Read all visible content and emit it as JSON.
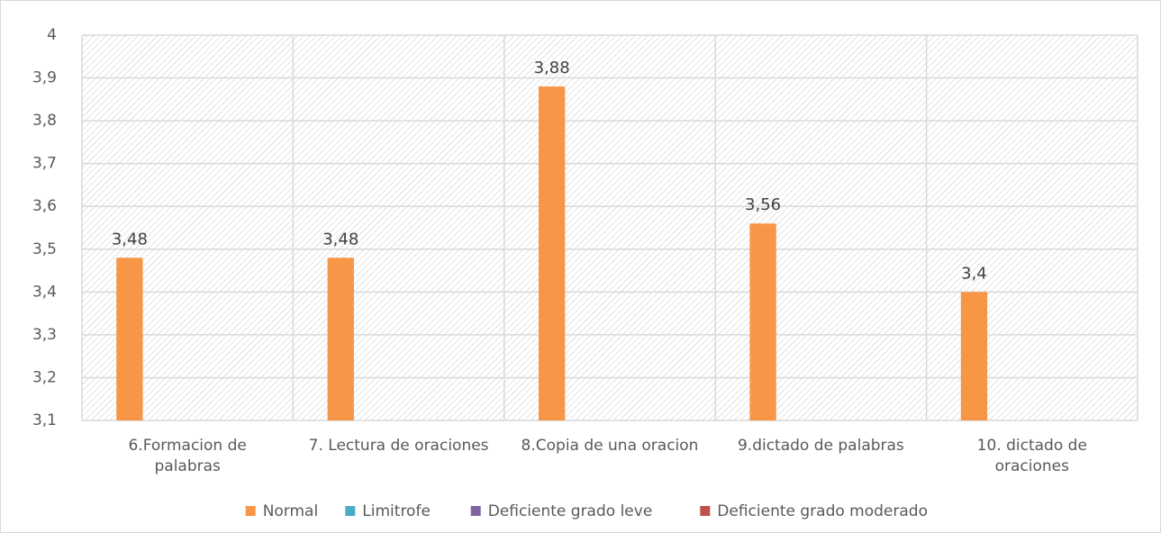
{
  "chart_data": {
    "type": "bar",
    "categories": [
      "6.Formacion de palabras",
      "7. Lectura de oraciones",
      "8.Copia de una oracion",
      "9.dictado de palabras",
      "10. dictado de oraciones"
    ],
    "series": [
      {
        "name": "Normal",
        "color": "#f79646",
        "values": [
          3.48,
          3.48,
          3.88,
          3.56,
          3.4
        ],
        "value_labels": [
          "3,48",
          "3,48",
          "3,88",
          "3,56",
          "3,4"
        ]
      },
      {
        "name": "Limitrofe",
        "color": "#4bacc6",
        "values": [
          null,
          null,
          null,
          null,
          null
        ]
      },
      {
        "name": "Deficiente grado leve",
        "color": "#8064a2",
        "values": [
          null,
          null,
          null,
          null,
          null
        ]
      },
      {
        "name": "Deficiente grado moderado",
        "color": "#c0504d",
        "values": [
          null,
          null,
          null,
          null,
          null
        ]
      }
    ],
    "ylim": [
      3.1,
      4
    ],
    "yticks": [
      {
        "value": 3.1,
        "label": "3,1"
      },
      {
        "value": 3.2,
        "label": "3,2"
      },
      {
        "value": 3.3,
        "label": "3,3"
      },
      {
        "value": 3.4,
        "label": "3,4"
      },
      {
        "value": 3.5,
        "label": "3,5"
      },
      {
        "value": 3.6,
        "label": "3,6"
      },
      {
        "value": 3.7,
        "label": "3,7"
      },
      {
        "value": 3.8,
        "label": "3,8"
      },
      {
        "value": 3.9,
        "label": "3,9"
      },
      4
    ],
    "grid": true,
    "legend": "bottom"
  }
}
